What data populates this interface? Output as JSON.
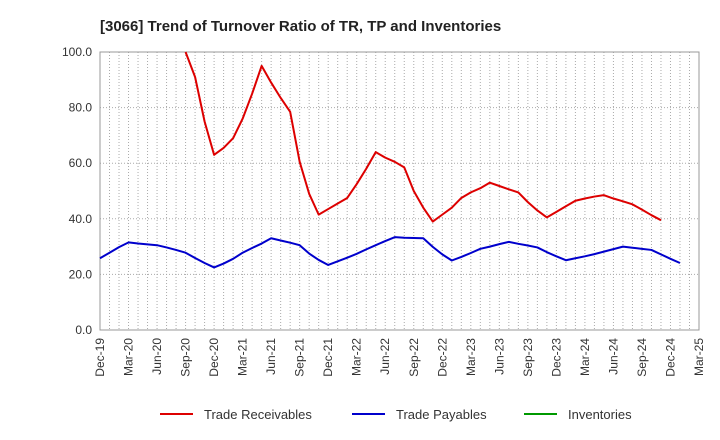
{
  "chart_data": {
    "type": "line",
    "title": "[3066]  Trend of Turnover Ratio of TR, TP and Inventories",
    "xlabel": "",
    "ylabel": "",
    "ylim": [
      0,
      100
    ],
    "yticks": [
      "0.0",
      "20.0",
      "40.0",
      "60.0",
      "80.0",
      "100.0"
    ],
    "xtick_labels": [
      "Dec-19",
      "Mar-20",
      "Jun-20",
      "Sep-20",
      "Dec-20",
      "Mar-21",
      "Jun-21",
      "Sep-21",
      "Dec-21",
      "Mar-22",
      "Jun-22",
      "Sep-22",
      "Dec-22",
      "Mar-23",
      "Jun-23",
      "Sep-23",
      "Dec-23",
      "Mar-24",
      "Jun-24",
      "Sep-24",
      "Dec-24",
      "Mar-25"
    ],
    "grid": true,
    "legend_position": "bottom",
    "series": [
      {
        "name": "Trade Receivables",
        "color": "#dd0000",
        "points": [
          [
            9,
            100
          ],
          [
            10,
            91
          ],
          [
            11,
            75
          ],
          [
            12,
            63
          ],
          [
            13,
            65.5
          ],
          [
            14,
            69
          ],
          [
            15,
            76
          ],
          [
            16,
            85
          ],
          [
            17,
            95
          ],
          [
            18,
            89
          ],
          [
            19,
            83.5
          ],
          [
            20,
            78.5
          ],
          [
            21,
            60.5
          ],
          [
            22,
            49
          ],
          [
            23,
            41.5
          ],
          [
            24,
            43.5
          ],
          [
            25,
            45.5
          ],
          [
            26,
            47.5
          ],
          [
            27,
            52.5
          ],
          [
            28,
            58
          ],
          [
            29,
            64
          ],
          [
            30,
            62
          ],
          [
            31,
            60.5
          ],
          [
            32,
            58.5
          ],
          [
            33,
            50
          ],
          [
            34,
            44
          ],
          [
            35,
            39
          ],
          [
            36,
            41.5
          ],
          [
            37,
            44
          ],
          [
            38,
            47.5
          ],
          [
            39,
            49.5
          ],
          [
            40,
            51
          ],
          [
            41,
            53
          ],
          [
            42,
            51.8
          ],
          [
            43,
            50.6
          ],
          [
            44,
            49.5
          ],
          [
            45,
            46
          ],
          [
            46,
            43
          ],
          [
            47,
            40.5
          ],
          [
            48,
            42.5
          ],
          [
            49,
            44.5
          ],
          [
            50,
            46.5
          ],
          [
            51,
            47.3
          ],
          [
            52,
            48
          ],
          [
            53,
            48.5
          ],
          [
            54,
            47.3
          ],
          [
            55,
            46.3
          ],
          [
            56,
            45.2
          ],
          [
            57,
            43.3
          ],
          [
            58,
            41.3
          ],
          [
            59,
            39.5
          ]
        ]
      },
      {
        "name": "Trade Payables",
        "color": "#0000cc",
        "points": [
          [
            0,
            25.8
          ],
          [
            1,
            27.8
          ],
          [
            2,
            29.8
          ],
          [
            3,
            31.5
          ],
          [
            4,
            31.1
          ],
          [
            5,
            30.8
          ],
          [
            6,
            30.5
          ],
          [
            7,
            29.7
          ],
          [
            8,
            28.8
          ],
          [
            9,
            27.8
          ],
          [
            10,
            25.9
          ],
          [
            11,
            24.1
          ],
          [
            12,
            22.5
          ],
          [
            13,
            23.9
          ],
          [
            14,
            25.6
          ],
          [
            15,
            27.8
          ],
          [
            16,
            29.5
          ],
          [
            17,
            31.1
          ],
          [
            18,
            33
          ],
          [
            19,
            32.2
          ],
          [
            20,
            31.4
          ],
          [
            21,
            30.5
          ],
          [
            22,
            27.5
          ],
          [
            23,
            25.2
          ],
          [
            24,
            23.4
          ],
          [
            25,
            24.7
          ],
          [
            26,
            26
          ],
          [
            27,
            27.4
          ],
          [
            28,
            29
          ],
          [
            29,
            30.5
          ],
          [
            30,
            32
          ],
          [
            31,
            33.4
          ],
          [
            32,
            33.2
          ],
          [
            33,
            33.1
          ],
          [
            34,
            33
          ],
          [
            35,
            29.9
          ],
          [
            36,
            27.2
          ],
          [
            37,
            25
          ],
          [
            38,
            26.3
          ],
          [
            39,
            27.7
          ],
          [
            40,
            29.2
          ],
          [
            41,
            30
          ],
          [
            42,
            30.9
          ],
          [
            43,
            31.7
          ],
          [
            44,
            31
          ],
          [
            45,
            30.4
          ],
          [
            46,
            29.7
          ],
          [
            47,
            28
          ],
          [
            48,
            26.5
          ],
          [
            49,
            25.1
          ],
          [
            50,
            25.8
          ],
          [
            51,
            26.5
          ],
          [
            52,
            27.3
          ],
          [
            53,
            28.2
          ],
          [
            54,
            29.1
          ],
          [
            55,
            30
          ],
          [
            56,
            29.6
          ],
          [
            57,
            29.2
          ],
          [
            58,
            28.8
          ],
          [
            59,
            27.2
          ],
          [
            60,
            25.6
          ],
          [
            61,
            24.1
          ]
        ]
      },
      {
        "name": "Inventories",
        "color": "#009900",
        "points": []
      }
    ]
  }
}
